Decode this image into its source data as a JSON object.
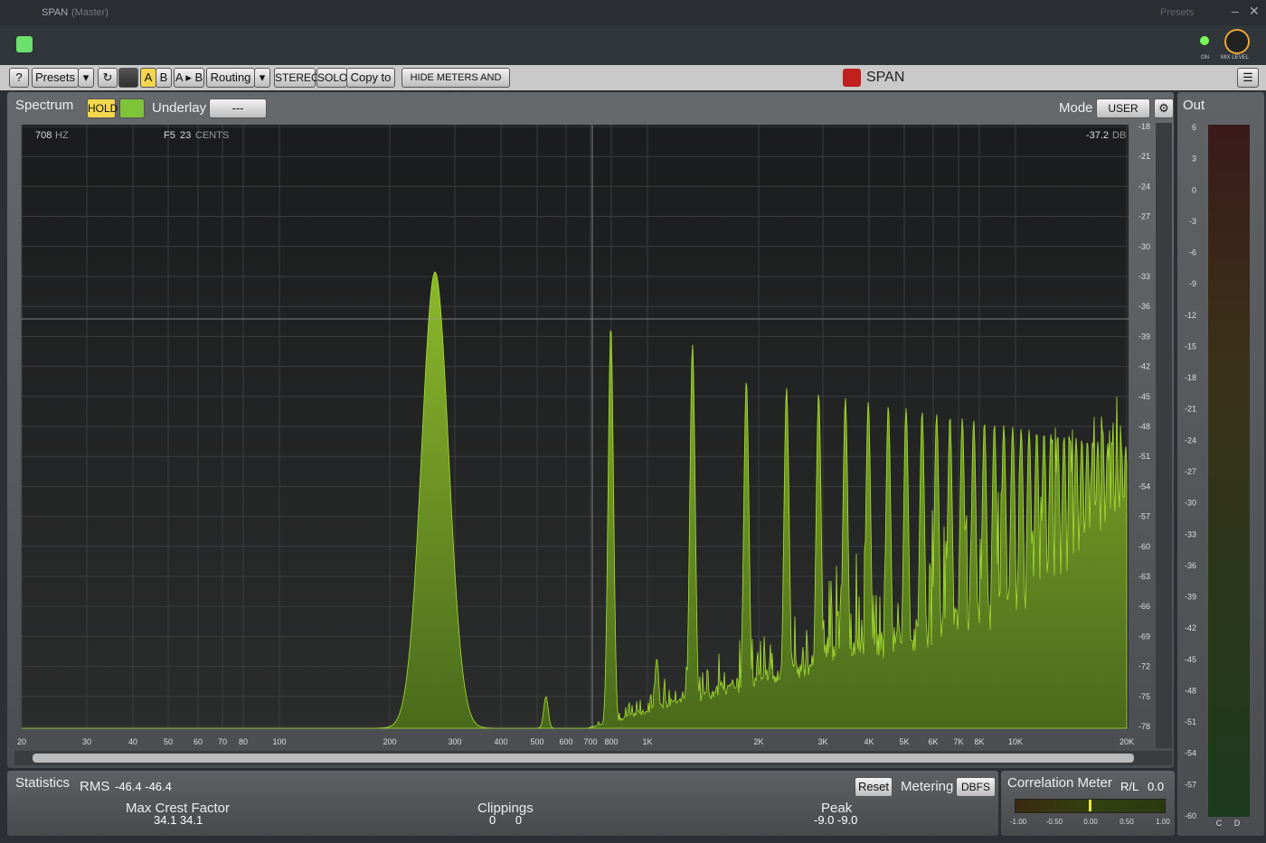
{
  "window": {
    "title": "SPAN",
    "subtitle": "(Master)",
    "presets": "Presets"
  },
  "toolbar": {
    "help": "?",
    "presets": "Presets",
    "a": "A",
    "b": "B",
    "ab": "A ▸ B",
    "routing": "Routing",
    "stereo": "STEREO",
    "solo": "SOLO",
    "copy": "Copy to",
    "hide": "HIDE METERS AND STATS",
    "brand": "SPAN"
  },
  "knob": {
    "on": "ON",
    "mix": "MIX LEVEL"
  },
  "spectrum": {
    "label": "Spectrum",
    "hold": "HOLD",
    "underlay": "Underlay",
    "underlay_value": "---",
    "mode": "Mode",
    "mode_value": "USER",
    "out": "Out",
    "readout": {
      "freq": "708",
      "freq_unit": "HZ",
      "note": "F5",
      "cents": "23",
      "cents_unit": "CENTS",
      "level": "-37.2",
      "level_unit": "DB"
    },
    "db_ticks": [
      "-18",
      "-21",
      "-24",
      "-27",
      "-30",
      "-33",
      "-36",
      "-39",
      "-42",
      "-45",
      "-48",
      "-51",
      "-54",
      "-57",
      "-60",
      "-63",
      "-66",
      "-69",
      "-72",
      "-75",
      "-78"
    ],
    "freq_ticks": [
      "20",
      "30",
      "40",
      "50",
      "60",
      "70",
      "80",
      "100",
      "200",
      "300",
      "400",
      "500",
      "600",
      "700",
      "800",
      "1K",
      "2K",
      "3K",
      "4K",
      "5K",
      "6K",
      "7K",
      "8K",
      "10K",
      "20K"
    ],
    "out_ticks": [
      "6",
      "3",
      "0",
      "-3",
      "-6",
      "-9",
      "-12",
      "-15",
      "-18",
      "-21",
      "-24",
      "-27",
      "-30",
      "-33",
      "-36",
      "-39",
      "-42",
      "-45",
      "-48",
      "-51",
      "-54",
      "-57",
      "-60"
    ],
    "out_channels": [
      "C",
      "D"
    ]
  },
  "stats": {
    "label": "Statistics",
    "rms": "RMS",
    "rms_values": "-46.4  -46.4",
    "crest": "Max Crest Factor",
    "crest_values": "34.1  34.1",
    "clippings": "Clippings",
    "clip_values": "0      0",
    "peak": "Peak",
    "peak_values": "-9.0  -9.0",
    "reset": "Reset",
    "metering": "Metering",
    "metering_value": "DBFS",
    "correlation": "Correlation Meter",
    "rl": "R/L",
    "rl_value": "0.0",
    "corr_ticks": [
      "-1.00",
      "-0.50",
      "0.00",
      "0.50",
      "1.00"
    ]
  }
}
